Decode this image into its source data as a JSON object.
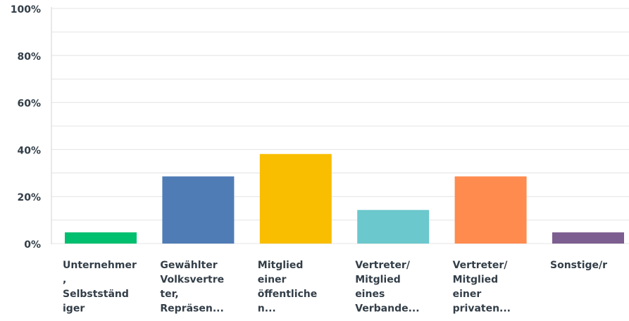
{
  "chart_data": {
    "type": "bar",
    "categories": [
      [
        "Unternehmer",
        ",",
        "Selbstständ",
        "iger"
      ],
      [
        "Gewählter",
        "Volksvertre",
        "ter,",
        "Repräsen..."
      ],
      [
        "Mitglied",
        "einer",
        "öffentliche",
        "n..."
      ],
      [
        "Vertreter/",
        "Mitglied",
        "eines",
        "Verbande..."
      ],
      [
        "Vertreter/",
        "Mitglied",
        "einer",
        "privaten..."
      ],
      [
        "Sonstige/r"
      ]
    ],
    "values": [
      4.76,
      28.57,
      38.1,
      14.29,
      28.57,
      4.76
    ],
    "colors": [
      "#00bf6f",
      "#507cb6",
      "#f9be00",
      "#6bc8cd",
      "#ff8b4f",
      "#7d5e90"
    ],
    "ylim": [
      0,
      100
    ],
    "yticks": [
      {
        "value": 0,
        "label": "0%"
      },
      {
        "value": 20,
        "label": "20%"
      },
      {
        "value": 40,
        "label": "40%"
      },
      {
        "value": 60,
        "label": "60%"
      },
      {
        "value": 80,
        "label": "80%"
      },
      {
        "value": 100,
        "label": "100%"
      }
    ],
    "minor_yticks": [
      10,
      30,
      50,
      70,
      90
    ],
    "grid": true
  }
}
